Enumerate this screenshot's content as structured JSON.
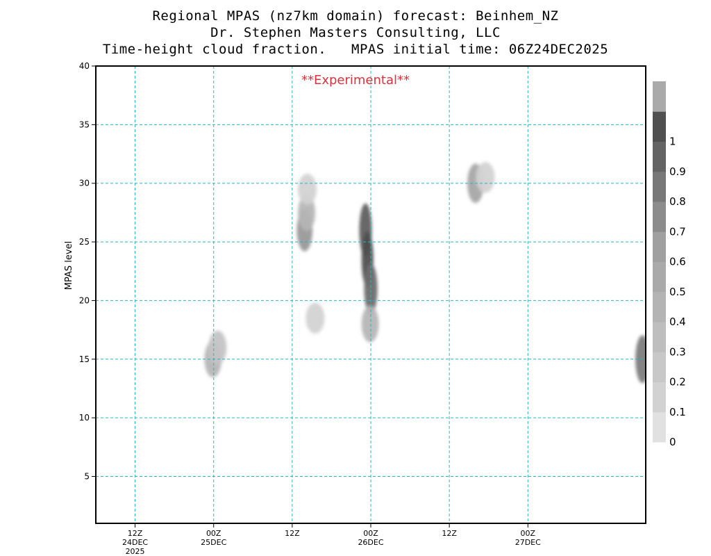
{
  "header": {
    "title_line1": "Regional MPAS (nz7km domain) forecast: Beinhem_NZ",
    "title_line2": "Dr. Stephen Masters Consulting, LLC",
    "title_line3": "Time-height cloud fraction.   MPAS initial time: 06Z24DEC2025"
  },
  "chart_data": {
    "type": "heatmap",
    "annotation": "**Experimental**",
    "ylabel": "MPAS level",
    "xlabel": "",
    "ylim": [
      1,
      40
    ],
    "y_ticks": [
      5,
      10,
      15,
      20,
      25,
      30,
      35,
      40
    ],
    "x_range_hours": [
      6,
      90
    ],
    "x_ticks": [
      {
        "hour": 12,
        "lines": [
          "12Z",
          "24DEC",
          "2025"
        ]
      },
      {
        "hour": 24,
        "lines": [
          "00Z",
          "25DEC"
        ]
      },
      {
        "hour": 36,
        "lines": [
          "12Z"
        ]
      },
      {
        "hour": 48,
        "lines": [
          "00Z",
          "26DEC"
        ]
      },
      {
        "hour": 60,
        "lines": [
          "12Z"
        ]
      },
      {
        "hour": 72,
        "lines": [
          "00Z",
          "27DEC"
        ]
      }
    ],
    "grid": true,
    "colorbar": {
      "labels": [
        "0",
        "0.1",
        "0.2",
        "0.3",
        "0.4",
        "0.5",
        "0.6",
        "0.7",
        "0.8",
        "0.9",
        "1"
      ],
      "colors": [
        "#e1e1e1",
        "#d2d2d2",
        "#c8c8c8",
        "#bebebe",
        "#b4b4b4",
        "#aaaaaa",
        "#a0a0a0",
        "#8c8c8c",
        "#787878",
        "#646464",
        "#505050",
        "#aaaaaa"
      ]
    },
    "cells": [
      {
        "hour": 23.9,
        "level": 15,
        "value": 0.3
      },
      {
        "hour": 24.6,
        "level": 16,
        "value": 0.2
      },
      {
        "hour": 37.9,
        "level": 26,
        "value": 0.5
      },
      {
        "hour": 38.2,
        "level": 27.5,
        "value": 0.3
      },
      {
        "hour": 38.3,
        "level": 29.5,
        "value": 0.1
      },
      {
        "hour": 39.5,
        "level": 18.5,
        "value": 0.1
      },
      {
        "hour": 47.2,
        "level": 26,
        "value": 0.9
      },
      {
        "hour": 47.5,
        "level": 23.5,
        "value": 1.0
      },
      {
        "hour": 48.0,
        "level": 21,
        "value": 0.8
      },
      {
        "hour": 47.9,
        "level": 18,
        "value": 0.3
      },
      {
        "hour": 64.0,
        "level": 30,
        "value": 0.4
      },
      {
        "hour": 65.5,
        "level": 30.5,
        "value": 0.1
      },
      {
        "hour": 89.5,
        "level": 15,
        "value": 0.7
      }
    ]
  }
}
